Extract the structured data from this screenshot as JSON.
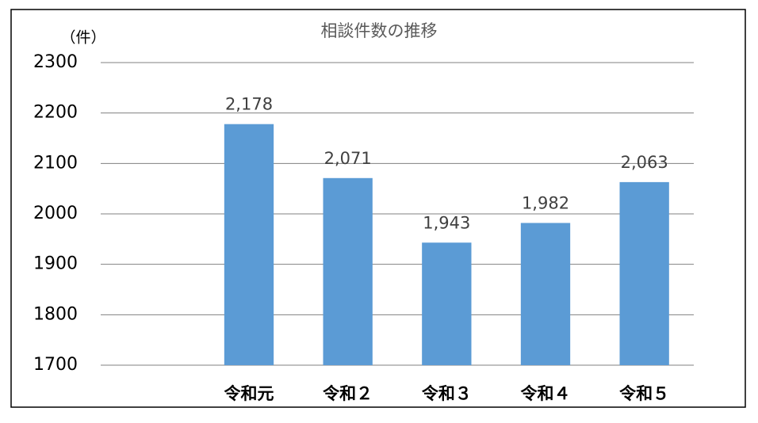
{
  "chart_data": {
    "type": "bar",
    "title": "相談件数の推移",
    "y_label": "（件）",
    "categories": [
      null,
      "令和元",
      "令和２",
      "令和３",
      "令和４",
      "令和５"
    ],
    "values": [
      null,
      2178,
      2071,
      1943,
      1982,
      2063
    ],
    "value_labels": [
      null,
      "2,178",
      "2,071",
      "1,943",
      "1,982",
      "2,063"
    ],
    "color": "#5b9bd5",
    "ylim": [
      1700,
      2300
    ],
    "yticks": [
      1700,
      1800,
      1900,
      2000,
      2100,
      2200,
      2300
    ],
    "grid": true
  }
}
